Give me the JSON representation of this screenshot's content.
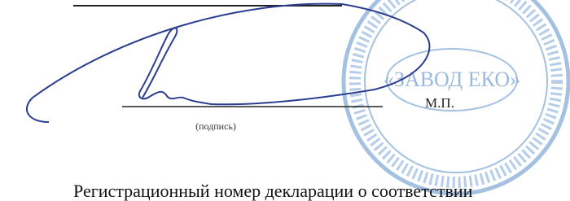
{
  "signature_block": {
    "caption": "(подпись)",
    "seal_mark": "М.П.",
    "stamp_text": "«ЗАВОД ЕКО»"
  },
  "footer": {
    "text": "Регистрационный номер декларации о соответствии"
  }
}
